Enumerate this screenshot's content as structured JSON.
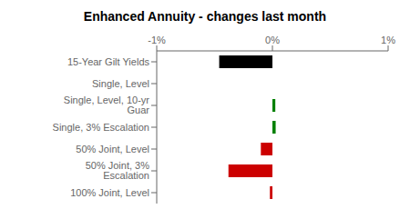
{
  "chart_data": {
    "type": "bar",
    "orientation": "horizontal",
    "title": "Enhanced Annuity - changes last month",
    "categories": [
      "15-Year Gilt Yields",
      "Single, Level",
      "Single, Level, 10-yr Guar",
      "Single, 3% Escalation",
      "50% Joint, Level",
      "50% Joint, 3% Escalation",
      "100% Joint, Level"
    ],
    "values": [
      -0.0046,
      0.0,
      0.00025,
      0.00028,
      -0.001,
      -0.0038,
      -0.00022
    ],
    "colors": [
      "#000000",
      "#000000",
      "#008000",
      "#008000",
      "#cc0000",
      "#cc0000",
      "#cc0000"
    ],
    "xlim": [
      -0.01,
      0.01
    ],
    "xticks": [
      {
        "value": -0.01,
        "label": "-1%"
      },
      {
        "value": 0,
        "label": "0%"
      },
      {
        "value": 0.01,
        "label": "1%"
      }
    ],
    "grid": false
  }
}
